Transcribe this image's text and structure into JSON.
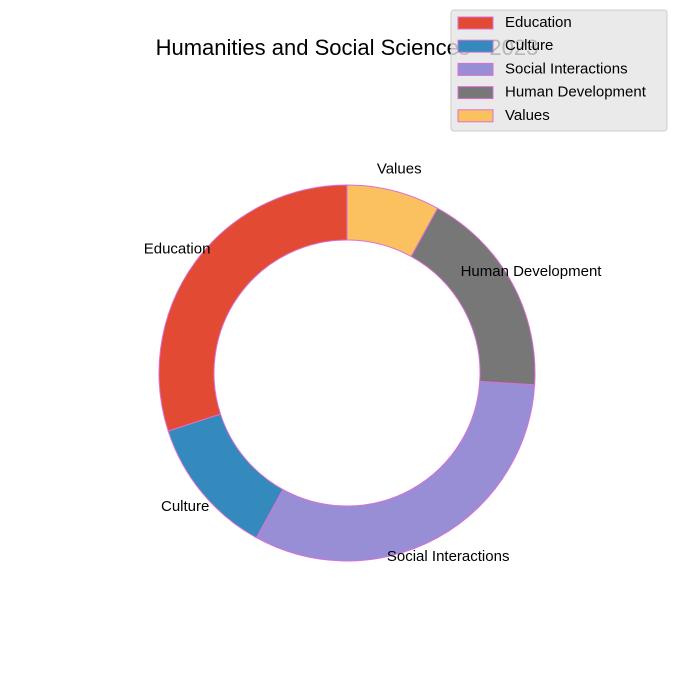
{
  "chart_data": {
    "type": "pie",
    "donut": true,
    "title": "Humanities and Social Sciences - 2023",
    "categories": [
      "Education",
      "Culture",
      "Social Interactions",
      "Human Development",
      "Values"
    ],
    "values": [
      30,
      12,
      32,
      18,
      8
    ],
    "colors": [
      "#E24A33",
      "#348ABD",
      "#988ED5",
      "#777777",
      "#FBC15E"
    ],
    "edge_color": "#DA70D6",
    "legend_position": "top-right",
    "start_angle_deg": 90,
    "direction": "counterclockwise"
  }
}
